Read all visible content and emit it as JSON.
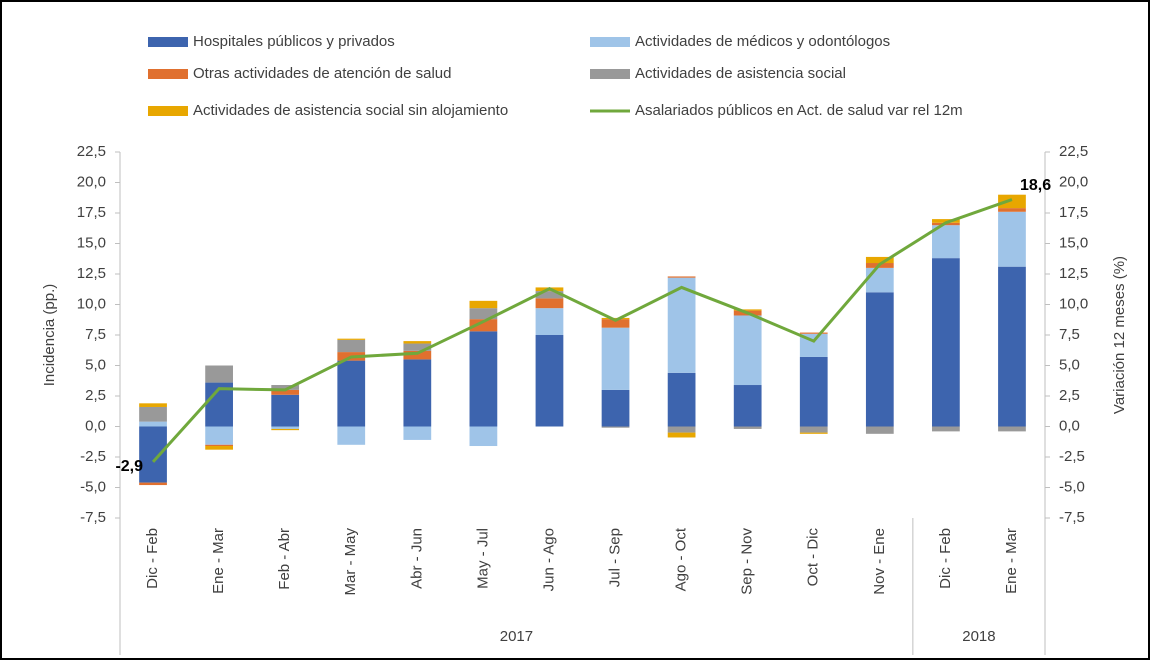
{
  "chart_data": {
    "type": "bar",
    "stacked": true,
    "ylabel": "Incidencia (pp.)",
    "y2label": "Variación 12 meses (%)",
    "categories": [
      "Dic - Feb",
      "Ene - Mar",
      "Feb - Abr",
      "Mar - May",
      "Abr - Jun",
      "May - Jul",
      "Jun - Ago",
      "Jul - Sep",
      "Ago - Oct",
      "Sep - Nov",
      "Oct - Dic",
      "Nov - Ene",
      "Dic - Feb",
      "Ene - Mar"
    ],
    "year_groups": [
      {
        "label": "2017",
        "categories": 12
      },
      {
        "label": "2018",
        "categories": 2
      }
    ],
    "series": [
      {
        "name": "Hospitales públicos y privados",
        "color": "#3d64ae",
        "values": [
          -4.6,
          3.6,
          2.6,
          5.4,
          5.5,
          7.8,
          7.5,
          3.0,
          4.4,
          3.4,
          5.7,
          11.0,
          13.8,
          13.1
        ]
      },
      {
        "name": "Actividades de médicos y odontólogos",
        "color": "#9fc4e8",
        "values": [
          0.4,
          -1.5,
          -0.2,
          -1.5,
          -1.1,
          -1.6,
          2.2,
          5.1,
          7.8,
          5.7,
          1.9,
          2.0,
          2.7,
          4.5
        ]
      },
      {
        "name": "Otras actividades de atención de salud",
        "color": "#e0702f",
        "values": [
          -0.2,
          -0.1,
          0.4,
          0.7,
          0.7,
          1.0,
          0.8,
          0.7,
          0.1,
          0.4,
          0.1,
          0.4,
          0.2,
          0.3
        ]
      },
      {
        "name": "Actividades de asistencia social",
        "color": "#999999",
        "values": [
          1.2,
          1.4,
          0.4,
          1.0,
          0.6,
          0.9,
          0.6,
          -0.1,
          -0.5,
          -0.2,
          -0.5,
          -0.6,
          -0.4,
          -0.4
        ]
      },
      {
        "name": "Actividades de asistencia social sin alojamiento",
        "color": "#e8a700",
        "values": [
          0.3,
          -0.3,
          -0.1,
          0.1,
          0.2,
          0.6,
          0.3,
          0.1,
          -0.4,
          0.1,
          -0.1,
          0.5,
          0.3,
          1.1
        ]
      },
      {
        "name": "Asalariados públicos en Act. de salud var rel 12m",
        "color": "#70a83c",
        "type": "line",
        "axis": "y2",
        "values": [
          -2.9,
          3.1,
          3.0,
          5.7,
          6.0,
          8.6,
          11.3,
          8.7,
          11.4,
          9.3,
          7.0,
          13.3,
          16.7,
          18.6
        ],
        "value_labels": [
          "-2,9",
          null,
          null,
          null,
          null,
          null,
          null,
          null,
          null,
          null,
          null,
          null,
          null,
          "18,6"
        ]
      }
    ],
    "ylim": [
      -7.5,
      22.5
    ],
    "yticks": [
      {
        "value": -7.5,
        "label": "-7,5"
      },
      {
        "value": -5,
        "label": "-5,0"
      },
      {
        "value": -2.5,
        "label": "-2,5"
      },
      {
        "value": 0,
        "label": "0,0"
      },
      {
        "value": 2.5,
        "label": "2,5"
      },
      {
        "value": 5,
        "label": "5,0"
      },
      {
        "value": 7.5,
        "label": "7,5"
      },
      {
        "value": 10,
        "label": "10,0"
      },
      {
        "value": 12.5,
        "label": "12,5"
      },
      {
        "value": 15,
        "label": "15,0"
      },
      {
        "value": 17.5,
        "label": "17,5"
      },
      {
        "value": 20,
        "label": "20,0"
      },
      {
        "value": 22.5,
        "label": "22,5"
      }
    ],
    "y2lim": [
      -7.5,
      22.5
    ],
    "y2ticks": [
      {
        "value": -7.5,
        "label": "-7,5"
      },
      {
        "value": -5,
        "label": "-5,0"
      },
      {
        "value": -2.5,
        "label": "-2,5"
      },
      {
        "value": 0,
        "label": "0,0"
      },
      {
        "value": 2.5,
        "label": "2,5"
      },
      {
        "value": 5,
        "label": "5,0"
      },
      {
        "value": 7.5,
        "label": "7,5"
      },
      {
        "value": 10,
        "label": "10,0"
      },
      {
        "value": 12.5,
        "label": "12,5"
      },
      {
        "value": 15,
        "label": "15,0"
      },
      {
        "value": 17.5,
        "label": "17,5"
      },
      {
        "value": 20,
        "label": "20,0"
      },
      {
        "value": 22.5,
        "label": "22,5"
      }
    ],
    "grid": false,
    "legend": "top"
  }
}
